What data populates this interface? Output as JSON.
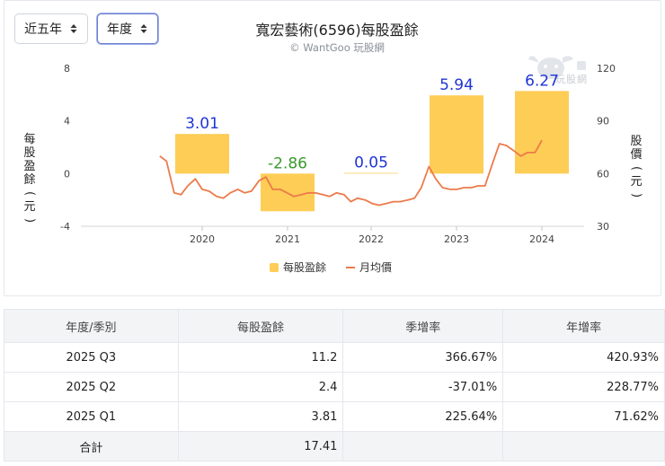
{
  "controls": {
    "period_label": "近五年",
    "unit_label": "年度"
  },
  "chart_title": "寬宏藝術(6596)每股盈餘",
  "credit": "© WantGoo 玩股網",
  "watermark_text": "玩股網",
  "colors": {
    "bar": "#fecd56",
    "line": "#ec7a4a",
    "positive": "#1f35d6",
    "negative": "#3a9a2c"
  },
  "chart_data": {
    "type": "bar",
    "categories": [
      "2020",
      "2021",
      "2022",
      "2023",
      "2024"
    ],
    "series": [
      {
        "name": "每股盈餘",
        "type": "bar",
        "axis": "left",
        "values": [
          3.01,
          -2.86,
          0.05,
          5.94,
          6.27
        ]
      },
      {
        "name": "月均價",
        "type": "line",
        "axis": "right",
        "x": [
          2019.5,
          2019.58,
          2019.67,
          2019.75,
          2019.83,
          2019.92,
          2020.0,
          2020.08,
          2020.17,
          2020.25,
          2020.33,
          2020.42,
          2020.5,
          2020.58,
          2020.67,
          2020.75,
          2020.83,
          2020.92,
          2021.0,
          2021.08,
          2021.17,
          2021.25,
          2021.33,
          2021.42,
          2021.5,
          2021.58,
          2021.67,
          2021.75,
          2021.83,
          2021.92,
          2022.0,
          2022.08,
          2022.17,
          2022.25,
          2022.33,
          2022.42,
          2022.5,
          2022.58,
          2022.67,
          2022.75,
          2022.83,
          2022.92,
          2023.0,
          2023.08,
          2023.17,
          2023.25,
          2023.33,
          2023.42,
          2023.5,
          2023.58,
          2023.67,
          2023.75,
          2023.83,
          2023.92,
          2024.0
        ],
        "values": [
          70,
          67,
          49,
          48,
          53,
          57,
          51,
          50,
          47,
          46,
          49,
          51,
          49,
          50,
          56,
          58,
          51,
          51,
          49,
          47,
          48,
          49,
          49,
          48,
          47,
          49,
          48,
          44,
          46,
          45,
          43,
          42,
          43,
          44,
          44,
          45,
          46,
          52,
          64,
          57,
          52,
          51,
          51,
          52,
          52,
          53,
          53,
          66,
          77,
          76,
          73,
          70,
          72,
          72,
          79
        ]
      }
    ],
    "ylim_left": [
      -4,
      8
    ],
    "yticks_left": [
      -4,
      0,
      4,
      8
    ],
    "ylim_right": [
      30,
      120
    ],
    "yticks_right": [
      30,
      60,
      90,
      120
    ],
    "ylabel_left": "每股盈餘 (元)",
    "ylabel_right": "股價 (元)",
    "legend": [
      "每股盈餘",
      "月均價"
    ],
    "legend_position": "bottom",
    "data_labels": [
      "3.01",
      "-2.86",
      "0.05",
      "5.94",
      "6.27"
    ]
  },
  "table": {
    "headers": [
      "年度/季別",
      "每股盈餘",
      "季增率",
      "年增率"
    ],
    "rows": [
      {
        "period": "2025 Q3",
        "eps": "11.2",
        "qoq": "366.67%",
        "yoy": "420.93%"
      },
      {
        "period": "2025 Q2",
        "eps": "2.4",
        "qoq": "-37.01%",
        "yoy": "228.77%"
      },
      {
        "period": "2025 Q1",
        "eps": "3.81",
        "qoq": "225.64%",
        "yoy": "71.62%"
      }
    ],
    "total": {
      "label": "合計",
      "eps": "17.41"
    }
  }
}
